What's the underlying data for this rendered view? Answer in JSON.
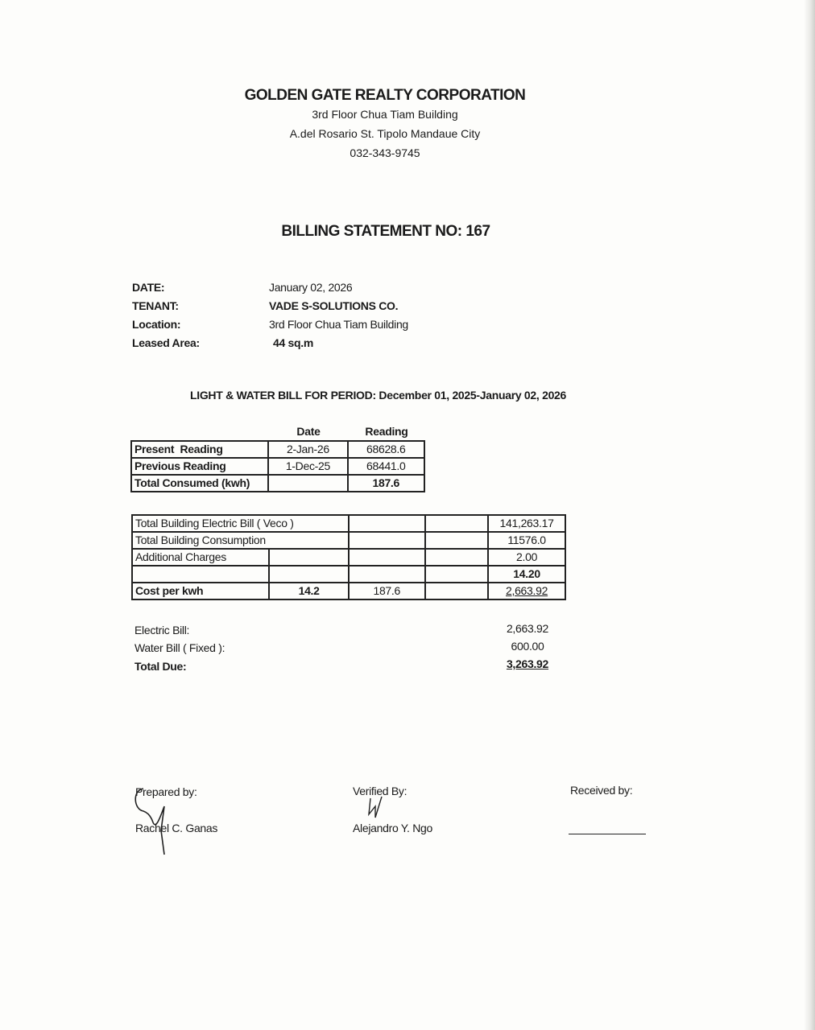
{
  "company": {
    "name": "GOLDEN GATE REALTY CORPORATION",
    "address1": "3rd Floor Chua Tiam Building",
    "address2": "A.del Rosario St. Tipolo Mandaue City",
    "phone": "032-343-9745"
  },
  "statement_title": "BILLING STATEMENT NO: 167",
  "info": [
    {
      "label": "DATE:",
      "value": "January 02, 2026"
    },
    {
      "label": "TENANT:",
      "value": "VADE S-SOLUTIONS CO."
    },
    {
      "label": "Location:",
      "value": "3rd Floor Chua Tiam Building"
    },
    {
      "label": "Leased Area:",
      "value": "44 sq.m"
    }
  ],
  "period_title": "LIGHT & WATER BILL FOR PERIOD: December 01, 2025-January 02, 2026",
  "readings": {
    "headers": [
      "Date",
      "Reading"
    ],
    "rows": [
      {
        "label": "Present  Reading",
        "date": "2-Jan-26",
        "reading": "68628.6"
      },
      {
        "label": "Previous Reading",
        "date": "1-Dec-25",
        "reading": "68441.0"
      },
      {
        "label": "Total Consumed (kwh)",
        "date": "",
        "reading": "187.6"
      }
    ]
  },
  "computation": {
    "rows": [
      {
        "label": "Total Building Electric Bill ( Veco )",
        "value": "141,263.17"
      },
      {
        "label": "Total Building Consumption",
        "value": "11576.0"
      },
      {
        "label": "Additional Charges",
        "value": "2.00"
      },
      {
        "label": "",
        "value": "14.20"
      },
      {
        "label": "Cost per kwh",
        "rate": "14.2",
        "kwh": "187.6",
        "value": "2,663.92"
      }
    ]
  },
  "summary": [
    {
      "label": "Electric Bill:",
      "value": "2,663.92"
    },
    {
      "label": "Water Bill ( Fixed ):",
      "value": "600.00"
    },
    {
      "label": "Total Due:",
      "value": "3,263.92"
    }
  ],
  "signatures": {
    "prepared_label": "Prepared by:",
    "prepared_name": "Rachel C. Ganas",
    "verified_label": "Verified By:",
    "verified_name": "Alejandro Y. Ngo",
    "received_label": "Received by:"
  }
}
